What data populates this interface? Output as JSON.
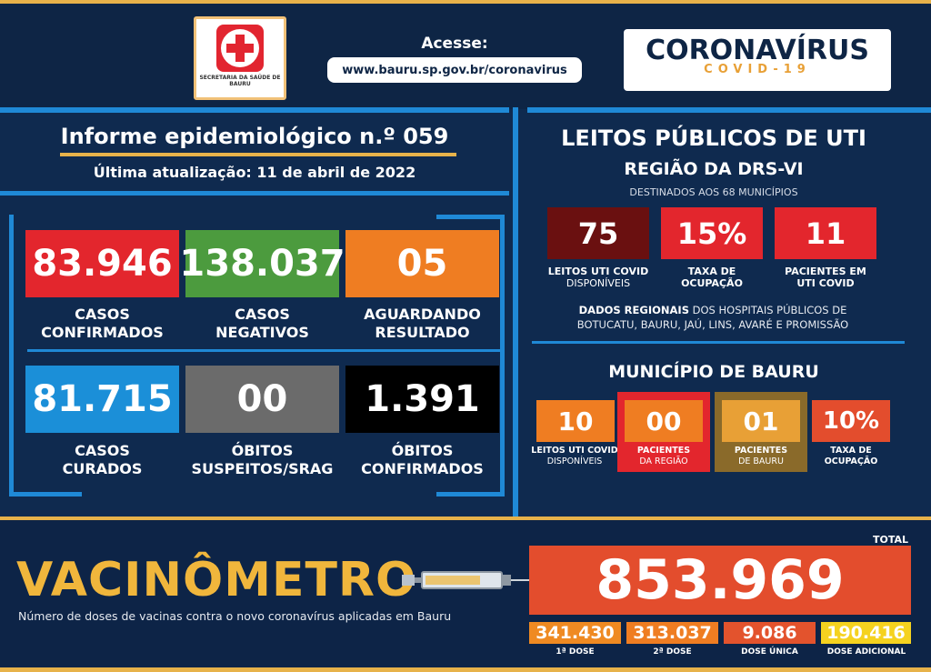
{
  "header": {
    "logo_text": "SECRETARIA DA SAÚDE DE BAURU",
    "access_label": "Acesse:",
    "url": "www.bauru.sp.gov.br/coronavirus",
    "brand_title": "CORONAVÍRUS",
    "brand_subtitle": "COVID-19"
  },
  "report": {
    "title": "Informe epidemiológico n.º 059",
    "updated": "Última atualização:  11 de abril de 2022"
  },
  "cards": [
    {
      "value": "83.946",
      "label1": "CASOS",
      "label2": "CONFIRMADOS",
      "color": "#e3262d"
    },
    {
      "value": "138.037",
      "label1": "CASOS",
      "label2": "NEGATIVOS",
      "color": "#4c9b3e"
    },
    {
      "value": "05",
      "label1": "AGUARDANDO",
      "label2": "RESULTADO",
      "color": "#ef7d22"
    },
    {
      "value": "81.715",
      "label1": "CASOS",
      "label2": "CURADOS",
      "color": "#1b8fd8"
    },
    {
      "value": "00",
      "label1": "ÓBITOS",
      "label2": "SUSPEITOS/SRAG",
      "color": "#6b6b6b"
    },
    {
      "value": "1.391",
      "label1": "ÓBITOS",
      "label2": "CONFIRMADOS",
      "color": "#000000"
    }
  ],
  "uti": {
    "title": "LEITOS PÚBLICOS DE UTI",
    "region_title": "REGIÃO DA DRS-VI",
    "region_sub": "DESTINADOS AOS 68 MUNICÍPIOS",
    "region_boxes": [
      {
        "value": "75",
        "label1": "LEITOS UTI COVID",
        "label2": "DISPONÍVEIS",
        "color": "#6a1010"
      },
      {
        "value": "15%",
        "label1": "TAXA DE",
        "label2": "OCUPAÇÃO",
        "color": "#e3262d"
      },
      {
        "value": "11",
        "label1": "PACIENTES EM",
        "label2": "UTI COVID",
        "color": "#e3262d"
      }
    ],
    "regional_bold": "DADOS REGIONAIS",
    "regional_text": " DOS HOSPITAIS PÚBLICOS DE",
    "regional_text2": "BOTUCATU, BAURU, JAÚ, LINS, AVARÉ E PROMISSÃO",
    "city_title": "MUNICÍPIO DE BAURU",
    "city_boxes": [
      {
        "value": "10",
        "label1": "LEITOS UTI COVID",
        "label2": "DISPONÍVEIS",
        "color": "#ef7d22"
      },
      {
        "value": "00",
        "label1": "PACIENTES",
        "label2": "DA REGIÃO",
        "color": "#ef7d22"
      },
      {
        "value": "01",
        "label1": "PACIENTES",
        "label2": "DE BAURU",
        "color": "#e8a036"
      },
      {
        "value": "10%",
        "label1": "TAXA DE",
        "label2": "OCUPAÇÃO",
        "color": "#e34d2d"
      }
    ]
  },
  "vaccine": {
    "title": "VACINÔMETRO",
    "subtitle": "Número de doses de vacinas contra o novo coronavírus aplicadas em Bauru",
    "total_label": "TOTAL",
    "total": "853.969",
    "doses": [
      {
        "value": "341.430",
        "label": "1ª DOSE",
        "color": "#ef8a22"
      },
      {
        "value": "313.037",
        "label": "2ª DOSE",
        "color": "#ef7d22"
      },
      {
        "value": "9.086",
        "label": "DOSE ÚNICA",
        "color": "#e3532d"
      },
      {
        "value": "190.416",
        "label": "DOSE ADICIONAL",
        "color": "#f5d21f"
      }
    ]
  }
}
